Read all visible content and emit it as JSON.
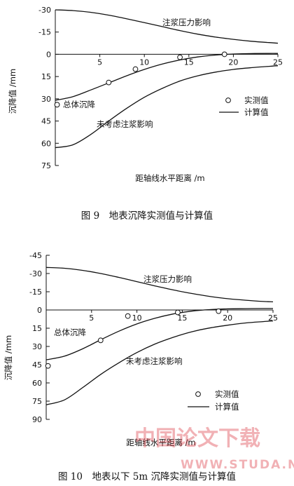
{
  "chart_data": [
    {
      "type": "line",
      "caption": "图 9　地表沉降实测值与计算值",
      "xlabel": "距轴线水平距离 /m",
      "ylabel": "沉降值 /mm",
      "xlim": [
        0,
        25
      ],
      "ylim": [
        -30,
        75
      ],
      "x_ticks": [
        5,
        10,
        15,
        20,
        25
      ],
      "y_ticks": [
        -30,
        -15,
        0,
        15,
        30,
        45,
        60,
        75
      ],
      "series": [
        {
          "name": "注浆压力影响",
          "kind": "line",
          "x": [
            0,
            2,
            4,
            6,
            8,
            10,
            12,
            14,
            16,
            18,
            20,
            22,
            24,
            25
          ],
          "y": [
            -30,
            -29.5,
            -28.3,
            -26.4,
            -24,
            -21.4,
            -18.7,
            -16,
            -13.6,
            -11.6,
            -10.1,
            -8.8,
            -7.9,
            -7.5
          ]
        },
        {
          "name": "总体沉降",
          "kind": "line",
          "x": [
            0,
            2,
            4,
            6,
            8,
            10,
            12,
            14,
            16,
            18,
            20,
            22,
            24,
            25
          ],
          "y": [
            31,
            28.5,
            24,
            19.3,
            14.5,
            10.2,
            6.6,
            3.8,
            1.8,
            0.5,
            -0.2,
            -0.5,
            -0.6,
            -0.6
          ]
        },
        {
          "name": "未考虑注浆影响",
          "kind": "line",
          "x": [
            0,
            2,
            4,
            6,
            8,
            10,
            12,
            14,
            16,
            18,
            20,
            22,
            24,
            25
          ],
          "y": [
            63,
            61,
            54,
            45,
            36.5,
            29,
            23,
            18,
            14.5,
            12,
            10.2,
            9,
            8.1,
            7.7
          ]
        },
        {
          "name": "实测值",
          "kind": "points",
          "x": [
            0.2,
            6,
            9,
            14,
            19
          ],
          "y": [
            34,
            19,
            10,
            2,
            0
          ]
        }
      ],
      "legend": [
        {
          "kind": "points",
          "label": "实测值"
        },
        {
          "kind": "line",
          "label": "计算值"
        }
      ],
      "legend_position": "right"
    },
    {
      "type": "line",
      "caption": "图 10　地表以下 5m 沉降实测值与计算值",
      "xlabel": "距轴线水平距离 /m",
      "ylabel": "沉降值 /mm",
      "xlim": [
        0,
        25
      ],
      "ylim": [
        -45,
        90
      ],
      "x_ticks": [
        5,
        10,
        15,
        20,
        25
      ],
      "y_ticks": [
        -45,
        -30,
        -15,
        0,
        15,
        30,
        45,
        60,
        75,
        90
      ],
      "series": [
        {
          "name": "注浆压力影响",
          "kind": "line",
          "x": [
            0,
            2,
            4,
            6,
            8,
            10,
            12,
            14,
            16,
            18,
            20,
            22,
            24,
            25
          ],
          "y": [
            -35,
            -34.3,
            -32.6,
            -30,
            -26.8,
            -23.3,
            -19.8,
            -16.5,
            -13.6,
            -11.2,
            -9.3,
            -8,
            -7,
            -6.7
          ]
        },
        {
          "name": "总体沉降",
          "kind": "line",
          "x": [
            0,
            2,
            4,
            6,
            8,
            10,
            12,
            14,
            16,
            18,
            20,
            22,
            24,
            25
          ],
          "y": [
            41,
            38,
            32,
            24.5,
            17.5,
            11.5,
            6.8,
            3.3,
            1,
            -0.3,
            -0.9,
            -1.1,
            -1.2,
            -1.2
          ]
        },
        {
          "name": "未考虑注浆影响",
          "kind": "line",
          "x": [
            0,
            2,
            4,
            6,
            8,
            10,
            12,
            14,
            16,
            18,
            20,
            22,
            24,
            25
          ],
          "y": [
            78,
            74,
            64,
            53,
            43.5,
            35,
            28,
            22.5,
            18,
            14.8,
            12.5,
            10.7,
            9.5,
            9
          ]
        },
        {
          "name": "实测值",
          "kind": "points",
          "x": [
            0.2,
            6,
            9,
            14.5,
            19
          ],
          "y": [
            46,
            25,
            5,
            2,
            1
          ]
        }
      ],
      "legend": [
        {
          "kind": "points",
          "label": "实测值"
        },
        {
          "kind": "line",
          "label": "计算值"
        }
      ],
      "legend_position": "right"
    }
  ],
  "watermark": {
    "text": "中国论文下载",
    "url": "WWW.STUDA.NET"
  }
}
